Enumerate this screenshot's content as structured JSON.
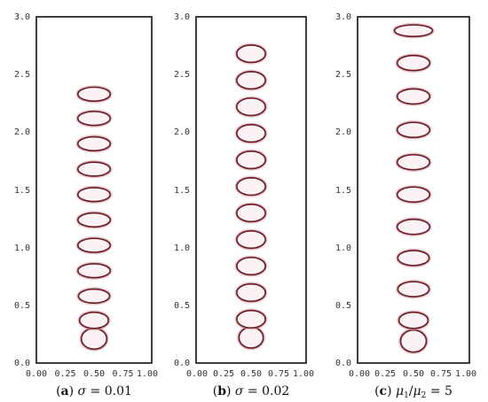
{
  "figure": {
    "panels": [
      {
        "id": "a",
        "caption": {
          "label": "a",
          "symbol": "σ",
          "rest": " = 0.01"
        },
        "xticks": [
          "0.00",
          "0.25",
          "0.50",
          "0.75",
          "1.00"
        ],
        "yticks": [
          "0.0",
          "0.5",
          "1.0",
          "1.5",
          "2.0",
          "2.5",
          "3.0"
        ],
        "bubbles": [
          {
            "y": 0.21,
            "w": 0.22,
            "h": 0.18
          },
          {
            "y": 0.37,
            "w": 0.25,
            "h": 0.14
          },
          {
            "y": 0.58,
            "w": 0.27,
            "h": 0.12
          },
          {
            "y": 0.8,
            "w": 0.28,
            "h": 0.12
          },
          {
            "y": 1.02,
            "w": 0.28,
            "h": 0.12
          },
          {
            "y": 1.24,
            "w": 0.28,
            "h": 0.12
          },
          {
            "y": 1.46,
            "w": 0.28,
            "h": 0.12
          },
          {
            "y": 1.68,
            "w": 0.28,
            "h": 0.12
          },
          {
            "y": 1.9,
            "w": 0.28,
            "h": 0.12
          },
          {
            "y": 2.12,
            "w": 0.28,
            "h": 0.12
          },
          {
            "y": 2.33,
            "w": 0.28,
            "h": 0.12
          }
        ]
      },
      {
        "id": "b",
        "caption": {
          "label": "b",
          "symbol": "σ",
          "rest": " = 0.02"
        },
        "xticks": [
          "0.00",
          "0.25",
          "0.50",
          "0.75",
          "1.00"
        ],
        "yticks": [
          "0.0",
          "0.5",
          "1.0",
          "1.5",
          "2.0",
          "2.5",
          "3.0"
        ],
        "bubbles": [
          {
            "y": 0.22,
            "w": 0.22,
            "h": 0.18
          },
          {
            "y": 0.38,
            "w": 0.26,
            "h": 0.15
          },
          {
            "y": 0.61,
            "w": 0.26,
            "h": 0.15
          },
          {
            "y": 0.84,
            "w": 0.26,
            "h": 0.15
          },
          {
            "y": 1.07,
            "w": 0.26,
            "h": 0.15
          },
          {
            "y": 1.3,
            "w": 0.26,
            "h": 0.15
          },
          {
            "y": 1.53,
            "w": 0.26,
            "h": 0.15
          },
          {
            "y": 1.76,
            "w": 0.26,
            "h": 0.15
          },
          {
            "y": 1.99,
            "w": 0.26,
            "h": 0.15
          },
          {
            "y": 2.22,
            "w": 0.26,
            "h": 0.15
          },
          {
            "y": 2.45,
            "w": 0.26,
            "h": 0.15
          },
          {
            "y": 2.68,
            "w": 0.26,
            "h": 0.15
          }
        ]
      },
      {
        "id": "c",
        "caption": {
          "label": "c",
          "mu1": "μ",
          "sub1": "1",
          "slash": "/",
          "mu2": "μ",
          "sub2": "2",
          "rest": " = 5"
        },
        "xticks": [
          "0.00",
          "0.25",
          "0.50",
          "0.75",
          "1.00"
        ],
        "yticks": [
          "0.0",
          "0.5",
          "1.0",
          "1.5",
          "2.0",
          "2.5",
          "3.0"
        ],
        "bubbles": [
          {
            "y": 0.19,
            "w": 0.23,
            "h": 0.19
          },
          {
            "y": 0.37,
            "w": 0.26,
            "h": 0.14
          },
          {
            "y": 0.64,
            "w": 0.28,
            "h": 0.13
          },
          {
            "y": 0.91,
            "w": 0.28,
            "h": 0.13
          },
          {
            "y": 1.18,
            "w": 0.29,
            "h": 0.13
          },
          {
            "y": 1.46,
            "w": 0.29,
            "h": 0.13
          },
          {
            "y": 1.74,
            "w": 0.29,
            "h": 0.13
          },
          {
            "y": 2.02,
            "w": 0.29,
            "h": 0.13
          },
          {
            "y": 2.31,
            "w": 0.29,
            "h": 0.13
          },
          {
            "y": 2.6,
            "w": 0.29,
            "h": 0.13
          },
          {
            "y": 2.88,
            "w": 0.34,
            "h": 0.1
          }
        ]
      }
    ],
    "colors": {
      "interface": "#6a1a22",
      "fill": "#fbf2f5",
      "halo": "#cc9aa4",
      "axis": "#111111"
    }
  }
}
